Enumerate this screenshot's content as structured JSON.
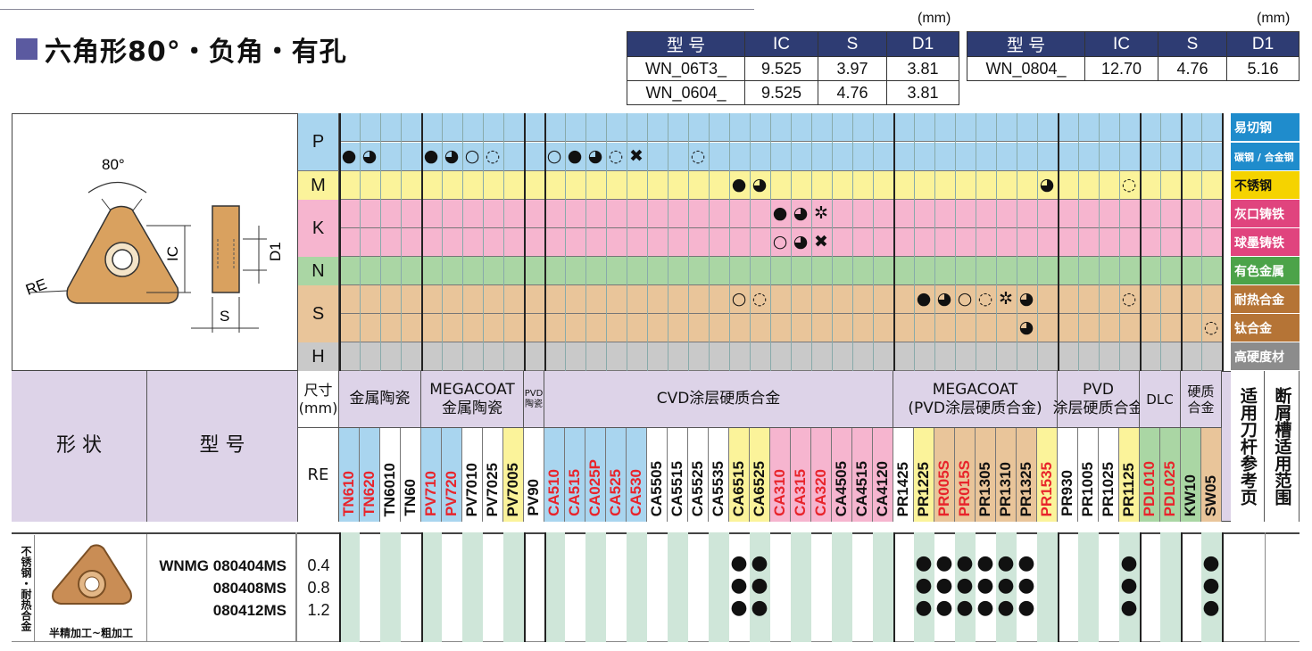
{
  "title": "六角形80°・负角・有孔",
  "spec_unit": "(mm)",
  "spec_headers": [
    "型 号",
    "IC",
    "S",
    "D1"
  ],
  "spec_left": [
    [
      "WN_06T3_",
      "9.525",
      "3.97",
      "3.81"
    ],
    [
      "WN_0604_",
      "9.525",
      "4.76",
      "3.81"
    ]
  ],
  "spec_right": [
    [
      "WN_0804_",
      "12.70",
      "4.76",
      "5.16"
    ]
  ],
  "diagram": {
    "angle": "80°",
    "re": "RE",
    "ic": "IC",
    "d1": "D1",
    "s": "S"
  },
  "materials": [
    {
      "code": "P",
      "label": "易切钢",
      "color": "#a9d5ef",
      "label_bg": "#1f8ccc"
    },
    {
      "code": "",
      "label": "碳钢 / 合金钢",
      "color": "#a9d5ef",
      "label_bg": "#1f8ccc"
    },
    {
      "code": "M",
      "label": "不锈钢",
      "color": "#fbf39a",
      "label_bg": "#f5d300"
    },
    {
      "code": "K",
      "label": "灰口铸铁",
      "color": "#f6b5cf",
      "label_bg": "#e0447e"
    },
    {
      "code": "",
      "label": "球墨铸铁",
      "color": "#f6b5cf",
      "label_bg": "#e0447e"
    },
    {
      "code": "N",
      "label": "有色金属",
      "color": "#aad6a4",
      "label_bg": "#4ca349"
    },
    {
      "code": "S",
      "label": "耐热合金",
      "color": "#e9c59a",
      "label_bg": "#b57436"
    },
    {
      "code": "",
      "label": "钛合金",
      "color": "#e9c59a",
      "label_bg": "#b57436"
    },
    {
      "code": "H",
      "label": "高硬度材",
      "color": "#c9c9c9",
      "label_bg": "#8c8c8c"
    }
  ],
  "header": {
    "shape": "形 状",
    "model": "型 号",
    "size": "尺寸\n(mm)",
    "re": "RE",
    "tool_ref": "适用刀杆参考页",
    "chip_range": "断屑槽适用范围"
  },
  "groups": [
    {
      "name": "金属陶瓷",
      "grades": [
        "TN610",
        "TN620",
        "TN6010",
        "TN60"
      ]
    },
    {
      "name": "MEGACOAT\n金属陶瓷",
      "grades": [
        "PV710",
        "PV720",
        "PV7010",
        "PV7025",
        "PV7005"
      ]
    },
    {
      "name": "PVD\n陶瓷",
      "grades": [
        "PV90"
      ]
    },
    {
      "name": "CVD涂层硬质合金",
      "grades": [
        "CA510",
        "CA515",
        "CA025P",
        "CA525",
        "CA530",
        "CA5505",
        "CA5515",
        "CA5525",
        "CA5535",
        "CA6515",
        "CA6525",
        "CA310",
        "CA315",
        "CA320",
        "CA4505",
        "CA4515",
        "CA4120"
      ]
    },
    {
      "name": "MEGACOAT\n(PVD涂层硬质合金)",
      "grades": [
        "PR1425",
        "PR1225",
        "PR005S",
        "PR015S",
        "PR1305",
        "PR1310",
        "PR1325",
        "PR1535"
      ]
    },
    {
      "name": "PVD\n涂层硬质合金",
      "grades": [
        "PR930",
        "PR1005",
        "PR1025",
        "PR1125"
      ]
    },
    {
      "name": "DLC",
      "grades": [
        "PDL010",
        "PDL025"
      ]
    },
    {
      "name": "硬质\n合金",
      "grades": [
        "KW10",
        "SW05"
      ]
    }
  ],
  "product": {
    "side": "不锈钢・耐热合金",
    "caption": "半精加工~粗加工",
    "models": [
      "WNMG 080404MS",
      "080408MS",
      "080412MS"
    ],
    "re": [
      "0.4",
      "0.8",
      "1.2"
    ]
  }
}
